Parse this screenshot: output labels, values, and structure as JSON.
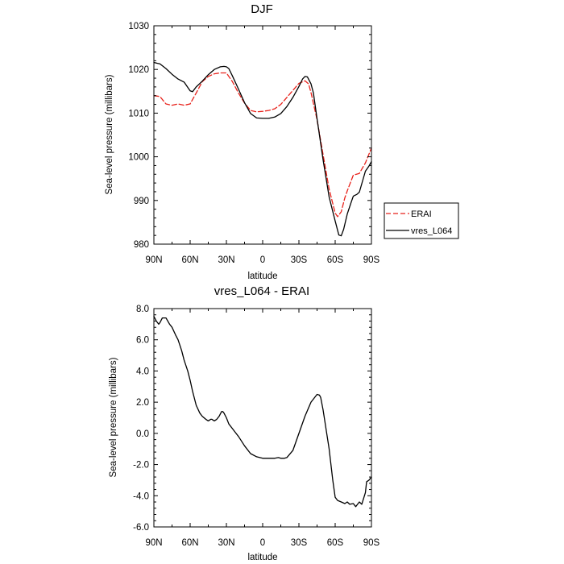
{
  "chart_data": [
    {
      "type": "line",
      "title": "DJF",
      "xlabel": "latitude",
      "ylabel": "Sea-level pressure (millibars)",
      "xlim": [
        90,
        -90
      ],
      "ylim": [
        980,
        1030
      ],
      "xticks": [
        {
          "value": 90,
          "label": "90N"
        },
        {
          "value": 60,
          "label": "60N"
        },
        {
          "value": 30,
          "label": "30N"
        },
        {
          "value": 0,
          "label": "0"
        },
        {
          "value": -30,
          "label": "30S"
        },
        {
          "value": -60,
          "label": "60S"
        },
        {
          "value": -90,
          "label": "90S"
        }
      ],
      "yticks": [
        {
          "value": 980,
          "label": "980"
        },
        {
          "value": 990,
          "label": "990"
        },
        {
          "value": 1000,
          "label": "1000"
        },
        {
          "value": 1010,
          "label": "1010"
        },
        {
          "value": 1020,
          "label": "1020"
        },
        {
          "value": 1030,
          "label": "1030"
        }
      ],
      "legend": {
        "position": "right"
      },
      "series": [
        {
          "name": "ERAI",
          "color": "#e8221b",
          "dash": "dashed",
          "x": [
            90,
            85,
            80,
            75,
            70,
            65,
            60,
            55,
            50,
            45,
            40,
            35,
            30,
            25,
            20,
            15,
            10,
            5,
            0,
            -5,
            -10,
            -15,
            -20,
            -25,
            -30,
            -35,
            -38,
            -40,
            -45,
            -50,
            -55,
            -60,
            -62,
            -65,
            -68,
            -70,
            -75,
            -80,
            -85,
            -90
          ],
          "values": [
            1014,
            1013.8,
            1012.1,
            1011.8,
            1012.1,
            1011.8,
            1012.1,
            1014.6,
            1017.2,
            1018.4,
            1019.0,
            1019.2,
            1019.2,
            1017.2,
            1014.6,
            1012.3,
            1010.6,
            1010.3,
            1010.4,
            1010.6,
            1011.0,
            1012.0,
            1013.6,
            1015.2,
            1016.8,
            1017.4,
            1016.7,
            1014.7,
            1008.5,
            1000.5,
            992.6,
            987.1,
            986.3,
            987.4,
            990.6,
            992.2,
            995.8,
            996.2,
            998.6,
            1002.0
          ]
        },
        {
          "name": "vres_L064",
          "color": "#000000",
          "dash": "solid",
          "x": [
            90,
            87,
            85,
            80,
            75,
            70,
            65,
            60,
            58,
            55,
            50,
            45,
            40,
            35,
            32,
            30,
            28,
            25,
            20,
            15,
            10,
            5,
            0,
            -5,
            -10,
            -15,
            -20,
            -25,
            -30,
            -33,
            -35,
            -37,
            -40,
            -42,
            -45,
            -50,
            -55,
            -60,
            -63,
            -65,
            -67,
            -70,
            -73,
            -75,
            -78,
            -80,
            -85,
            -88,
            -90
          ],
          "values": [
            1021.6,
            1021.4,
            1021.3,
            1020.2,
            1018.9,
            1017.8,
            1017.1,
            1015.1,
            1014.9,
            1016.0,
            1017.3,
            1018.8,
            1020.0,
            1020.6,
            1020.7,
            1020.6,
            1020.2,
            1018.5,
            1015.5,
            1012.4,
            1009.9,
            1008.9,
            1008.8,
            1008.8,
            1009.1,
            1009.9,
            1011.5,
            1013.6,
            1016.1,
            1017.8,
            1018.4,
            1018.3,
            1016.7,
            1014.6,
            1008.7,
            999.3,
            990.8,
            985.3,
            982.1,
            981.9,
            983.4,
            986.9,
            989.4,
            991.0,
            991.4,
            991.9,
            996.7,
            997.9,
            998.9
          ]
        }
      ]
    },
    {
      "type": "line",
      "title": "vres_L064 - ERAI",
      "xlabel": "latitude",
      "ylabel": "Sea-level pressure (millibars)",
      "xlim": [
        90,
        -90
      ],
      "ylim": [
        -6,
        8
      ],
      "xticks": [
        {
          "value": 90,
          "label": "90N"
        },
        {
          "value": 60,
          "label": "60N"
        },
        {
          "value": 30,
          "label": "30N"
        },
        {
          "value": 0,
          "label": "0"
        },
        {
          "value": -30,
          "label": "30S"
        },
        {
          "value": -60,
          "label": "60S"
        },
        {
          "value": -90,
          "label": "90S"
        }
      ],
      "yticks": [
        {
          "value": -6,
          "label": "-6.0"
        },
        {
          "value": -4,
          "label": "-4.0"
        },
        {
          "value": -2,
          "label": "-2.0"
        },
        {
          "value": 0,
          "label": "0.0"
        },
        {
          "value": 2,
          "label": "2.0"
        },
        {
          "value": 4,
          "label": "4.0"
        },
        {
          "value": 6,
          "label": "6.0"
        },
        {
          "value": 8,
          "label": "8.0"
        }
      ],
      "series": [
        {
          "name": "vres_L064 - ERAI",
          "color": "#000000",
          "dash": "solid",
          "x": [
            90,
            88,
            86,
            85,
            83,
            80,
            77,
            75,
            72,
            70,
            67,
            65,
            62,
            60,
            58,
            55,
            52,
            50,
            47,
            45,
            43,
            42,
            40,
            38,
            36,
            34,
            33,
            32,
            30,
            28,
            25,
            22,
            20,
            15,
            10,
            5,
            0,
            -5,
            -10,
            -13,
            -15,
            -18,
            -20,
            -25,
            -30,
            -35,
            -40,
            -45,
            -47,
            -48,
            -50,
            -52,
            -55,
            -58,
            -60,
            -62,
            -65,
            -68,
            -70,
            -72,
            -75,
            -77,
            -78,
            -80,
            -82,
            -85,
            -86,
            -88,
            -90
          ],
          "values": [
            7.5,
            7.2,
            7.0,
            7.1,
            7.4,
            7.4,
            7.0,
            6.8,
            6.3,
            6.0,
            5.3,
            4.7,
            4.0,
            3.4,
            2.7,
            1.8,
            1.3,
            1.1,
            0.9,
            0.8,
            0.9,
            0.9,
            0.8,
            0.9,
            1.1,
            1.4,
            1.4,
            1.3,
            1.0,
            0.6,
            0.3,
            0.0,
            -0.2,
            -0.8,
            -1.3,
            -1.5,
            -1.6,
            -1.6,
            -1.6,
            -1.55,
            -1.6,
            -1.6,
            -1.55,
            -1.1,
            0.0,
            1.1,
            2.0,
            2.5,
            2.45,
            2.3,
            1.5,
            0.5,
            -1.0,
            -3.0,
            -4.1,
            -4.3,
            -4.4,
            -4.5,
            -4.4,
            -4.55,
            -4.5,
            -4.7,
            -4.6,
            -4.4,
            -4.55,
            -3.8,
            -3.1,
            -3.0,
            -2.8
          ]
        }
      ]
    }
  ]
}
